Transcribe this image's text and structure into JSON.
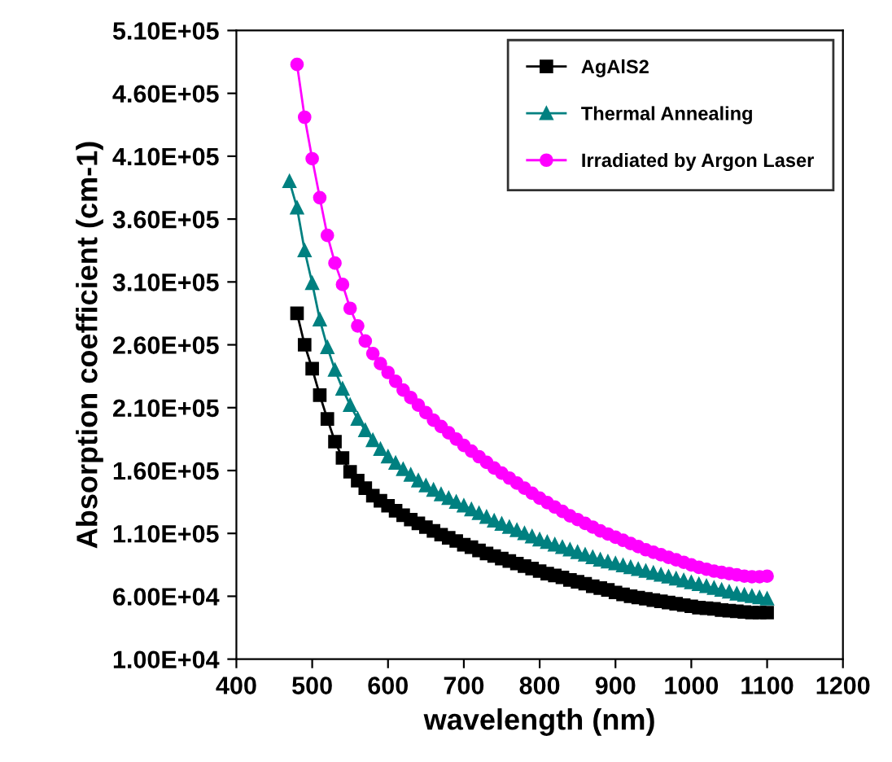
{
  "chart_data": {
    "type": "line",
    "xlabel": "wavelength (nm)",
    "ylabel": "Absorption coefficient (cm-1)",
    "xlim": [
      400,
      1200
    ],
    "xticks": [
      400,
      500,
      600,
      700,
      800,
      900,
      1000,
      1100,
      1200
    ],
    "ylim": [
      10000,
      510000
    ],
    "yticks": [
      {
        "value": 10000,
        "label": "1.00E+04"
      },
      {
        "value": 60000,
        "label": "6.00E+04"
      },
      {
        "value": 110000,
        "label": "1.10E+05"
      },
      {
        "value": 160000,
        "label": "1.60E+05"
      },
      {
        "value": 210000,
        "label": "2.10E+05"
      },
      {
        "value": 260000,
        "label": "2.60E+05"
      },
      {
        "value": 310000,
        "label": "3.10E+05"
      },
      {
        "value": 360000,
        "label": "3.60E+05"
      },
      {
        "value": 410000,
        "label": "4.10E+05"
      },
      {
        "value": 460000,
        "label": "4.60E+05"
      },
      {
        "value": 510000,
        "label": "5.10E+05"
      }
    ],
    "grid": false,
    "legend": "top right",
    "line_style": "solid",
    "series": [
      {
        "name": "AgAlS2",
        "color": "#000000",
        "marker": "square",
        "x": [
          480,
          490,
          500,
          510,
          520,
          530,
          540,
          550,
          560,
          570,
          580,
          590,
          600,
          610,
          620,
          630,
          640,
          650,
          660,
          670,
          680,
          690,
          700,
          710,
          720,
          730,
          740,
          750,
          760,
          770,
          780,
          790,
          800,
          810,
          820,
          830,
          840,
          850,
          860,
          870,
          880,
          890,
          900,
          910,
          920,
          930,
          940,
          950,
          960,
          970,
          980,
          990,
          1000,
          1010,
          1020,
          1030,
          1040,
          1050,
          1060,
          1070,
          1080,
          1090,
          1100
        ],
        "values": [
          285000,
          260000,
          241000,
          220000,
          201000,
          183000,
          170000,
          159000,
          152000,
          146000,
          140000,
          136000,
          132000,
          128000,
          124500,
          121000,
          118000,
          115000,
          112000,
          109000,
          106500,
          104000,
          101000,
          99000,
          96500,
          94000,
          92000,
          90000,
          88000,
          86000,
          84000,
          82000,
          80000,
          78000,
          76500,
          75000,
          73000,
          71500,
          70000,
          68000,
          66500,
          65000,
          63000,
          61500,
          60000,
          59000,
          58000,
          57000,
          56000,
          55000,
          54000,
          53000,
          52000,
          51000,
          50500,
          50000,
          49000,
          48500,
          48000,
          47500,
          47000,
          47000,
          47000
        ]
      },
      {
        "name": "Thermal Annealing",
        "color": "#008080",
        "marker": "triangle",
        "x": [
          470,
          480,
          490,
          500,
          510,
          520,
          530,
          540,
          550,
          560,
          570,
          580,
          590,
          600,
          610,
          620,
          630,
          640,
          650,
          660,
          670,
          680,
          690,
          700,
          710,
          720,
          730,
          740,
          750,
          760,
          770,
          780,
          790,
          800,
          810,
          820,
          830,
          840,
          850,
          860,
          870,
          880,
          890,
          900,
          910,
          920,
          930,
          940,
          950,
          960,
          970,
          980,
          990,
          1000,
          1010,
          1020,
          1030,
          1040,
          1050,
          1060,
          1070,
          1080,
          1090,
          1100
        ],
        "values": [
          390000,
          369000,
          335000,
          309000,
          280000,
          258000,
          240000,
          225000,
          212000,
          201000,
          192000,
          184000,
          177000,
          171000,
          166000,
          161000,
          156500,
          152000,
          148000,
          144500,
          141000,
          138000,
          135000,
          132000,
          129000,
          126000,
          123000,
          120000,
          117500,
          115000,
          112500,
          110000,
          107500,
          105000,
          103000,
          101000,
          99000,
          97000,
          95000,
          93000,
          91000,
          89000,
          87500,
          86000,
          84500,
          83000,
          81500,
          80000,
          78500,
          77000,
          75500,
          74000,
          72500,
          71000,
          69500,
          68000,
          66500,
          65000,
          63500,
          62000,
          61000,
          60000,
          59000,
          58000
        ]
      },
      {
        "name": "Irradiated by Argon Laser",
        "color": "#ff00ff",
        "marker": "circle",
        "x": [
          480,
          490,
          500,
          510,
          520,
          530,
          540,
          550,
          560,
          570,
          580,
          590,
          600,
          610,
          620,
          630,
          640,
          650,
          660,
          670,
          680,
          690,
          700,
          710,
          720,
          730,
          740,
          750,
          760,
          770,
          780,
          790,
          800,
          810,
          820,
          830,
          840,
          850,
          860,
          870,
          880,
          890,
          900,
          910,
          920,
          930,
          940,
          950,
          960,
          970,
          980,
          990,
          1000,
          1010,
          1020,
          1030,
          1040,
          1050,
          1060,
          1070,
          1080,
          1090,
          1100
        ],
        "values": [
          483000,
          441000,
          408000,
          377000,
          347000,
          325000,
          308000,
          289000,
          275000,
          263000,
          253000,
          245000,
          238000,
          231000,
          224000,
          218000,
          212000,
          206000,
          200000,
          195000,
          190000,
          185000,
          180000,
          175500,
          171000,
          166500,
          162000,
          158000,
          154000,
          150000,
          146000,
          142000,
          138000,
          134500,
          131000,
          127500,
          124000,
          121000,
          118000,
          115000,
          112000,
          109500,
          107000,
          104500,
          102000,
          99500,
          97000,
          95000,
          93000,
          91000,
          89000,
          87000,
          85000,
          83000,
          81500,
          80000,
          79000,
          78000,
          77000,
          76000,
          75500,
          75500,
          76000
        ]
      }
    ]
  }
}
